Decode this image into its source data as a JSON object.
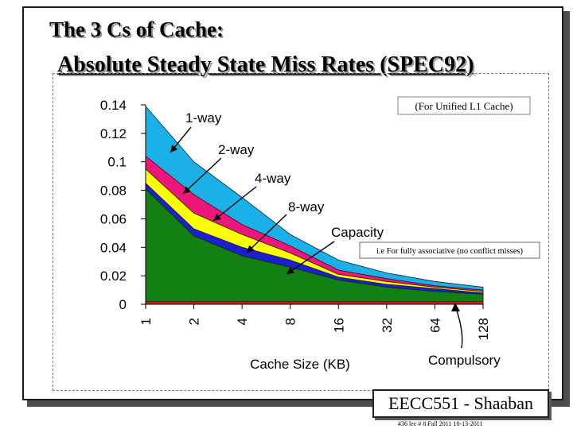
{
  "slide": {
    "title_line1": "The 3 Cs of Cache:",
    "title_line2": "Absolute Steady State Miss Rates (SPEC92)",
    "footer_label": "EECC551 - Shaaban",
    "footer_note": "#36 lec # 8 Fall 2011 10-13-2011"
  },
  "chart_data": {
    "type": "area",
    "subtitle": "(For Unified L1 Cache)",
    "xlabel": "Cache Size (KB)",
    "ylabel": "",
    "categories": [
      "1",
      "2",
      "4",
      "8",
      "16",
      "32",
      "64",
      "128"
    ],
    "ylim": [
      0,
      0.14
    ],
    "yticks": [
      "0",
      "0.02",
      "0.04",
      "0.06",
      "0.08",
      "0.1",
      "0.12",
      "0.14"
    ],
    "series": [
      {
        "name": "Compulsory",
        "color": "#cc2020",
        "values": [
          0.002,
          0.002,
          0.002,
          0.002,
          0.002,
          0.002,
          0.002,
          0.002
        ]
      },
      {
        "name": "Capacity",
        "color": "#128012",
        "values": [
          0.081,
          0.048,
          0.034,
          0.026,
          0.017,
          0.012,
          0.009,
          0.007
        ]
      },
      {
        "name": "8-way",
        "color": "#1a20d0",
        "values": [
          0.085,
          0.053,
          0.04,
          0.031,
          0.019,
          0.014,
          0.011,
          0.008
        ]
      },
      {
        "name": "4-way",
        "color": "#ffff00",
        "values": [
          0.095,
          0.064,
          0.049,
          0.036,
          0.021,
          0.016,
          0.012,
          0.009
        ]
      },
      {
        "name": "2-way",
        "color": "#f0157a",
        "values": [
          0.104,
          0.077,
          0.056,
          0.041,
          0.024,
          0.018,
          0.013,
          0.01
        ]
      },
      {
        "name": "1-way",
        "color": "#1ab0e8",
        "values": [
          0.139,
          0.1,
          0.075,
          0.049,
          0.031,
          0.022,
          0.016,
          0.012
        ]
      }
    ],
    "annotations": [
      {
        "text": "1-way"
      },
      {
        "text": "2-way"
      },
      {
        "text": "4-way"
      },
      {
        "text": "8-way"
      },
      {
        "text": "Capacity"
      },
      {
        "text": "Compulsory"
      },
      {
        "text": "i.e For fully associative (no conflict misses)"
      }
    ],
    "grid": false,
    "legend": "none"
  }
}
